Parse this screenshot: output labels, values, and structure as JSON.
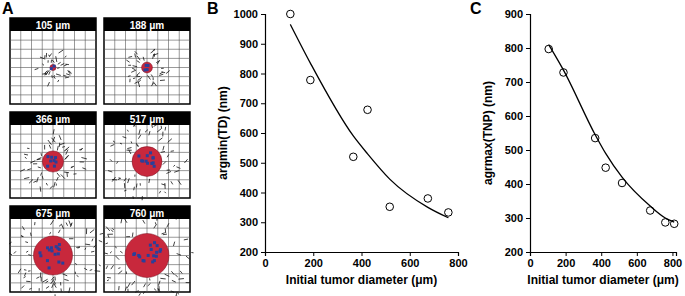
{
  "panel_labels": [
    "A",
    "B",
    "C"
  ],
  "simulations": {
    "items": [
      {
        "label": "105 μm",
        "diameter": 105
      },
      {
        "label": "188 μm",
        "diameter": 188
      },
      {
        "label": "366 μm",
        "diameter": 366
      },
      {
        "label": "517 μm",
        "diameter": 517
      },
      {
        "label": "675 μm",
        "diameter": 675
      },
      {
        "label": "760 μm",
        "diameter": 760
      }
    ]
  },
  "chart_data": [
    {
      "type": "scatter",
      "x_label": "Initial tumor diameter (μm)",
      "y_label": "argmin(TD)  (nm)",
      "xlim": [
        0,
        800
      ],
      "xticks": [
        0,
        200,
        400,
        600,
        800
      ],
      "ylim": [
        200,
        1000
      ],
      "yticks": [
        200,
        300,
        400,
        500,
        600,
        700,
        800,
        900,
        1000
      ],
      "grid": false,
      "series": [
        {
          "type": "scatter",
          "marker": "circle",
          "color": "#000000",
          "x": [
            105,
            188,
            366,
            425,
            517,
            675,
            760
          ],
          "values": [
            1000,
            778,
            520,
            678,
            352,
            380,
            333
          ]
        },
        {
          "type": "line",
          "line_style": "solid",
          "color": "#000000",
          "x": [
            105,
            188,
            366,
            425,
            517,
            675,
            760
          ],
          "values": [
            965,
            835,
            590,
            530,
            445,
            350,
            315
          ]
        }
      ]
    },
    {
      "type": "scatter",
      "x_label": "Initial tumor diameter (μm)",
      "y_label": "agrmax(TNP)  (nm)",
      "xlim": [
        0,
        820
      ],
      "xticks": [
        0,
        200,
        400,
        600,
        800
      ],
      "ylim": [
        200,
        900
      ],
      "yticks": [
        200,
        300,
        400,
        500,
        600,
        700,
        800,
        900
      ],
      "grid": false,
      "series": [
        {
          "type": "scatter",
          "marker": "circle",
          "color": "#000000",
          "x": [
            105,
            188,
            366,
            425,
            517,
            675,
            760,
            810
          ],
          "values": [
            797,
            728,
            535,
            448,
            403,
            322,
            287,
            283
          ]
        },
        {
          "type": "line",
          "line_style": "solid",
          "color": "#000000",
          "x": [
            105,
            188,
            366,
            425,
            517,
            675,
            760,
            810
          ],
          "values": [
            810,
            735,
            545,
            490,
            420,
            335,
            300,
            288
          ]
        }
      ]
    }
  ]
}
